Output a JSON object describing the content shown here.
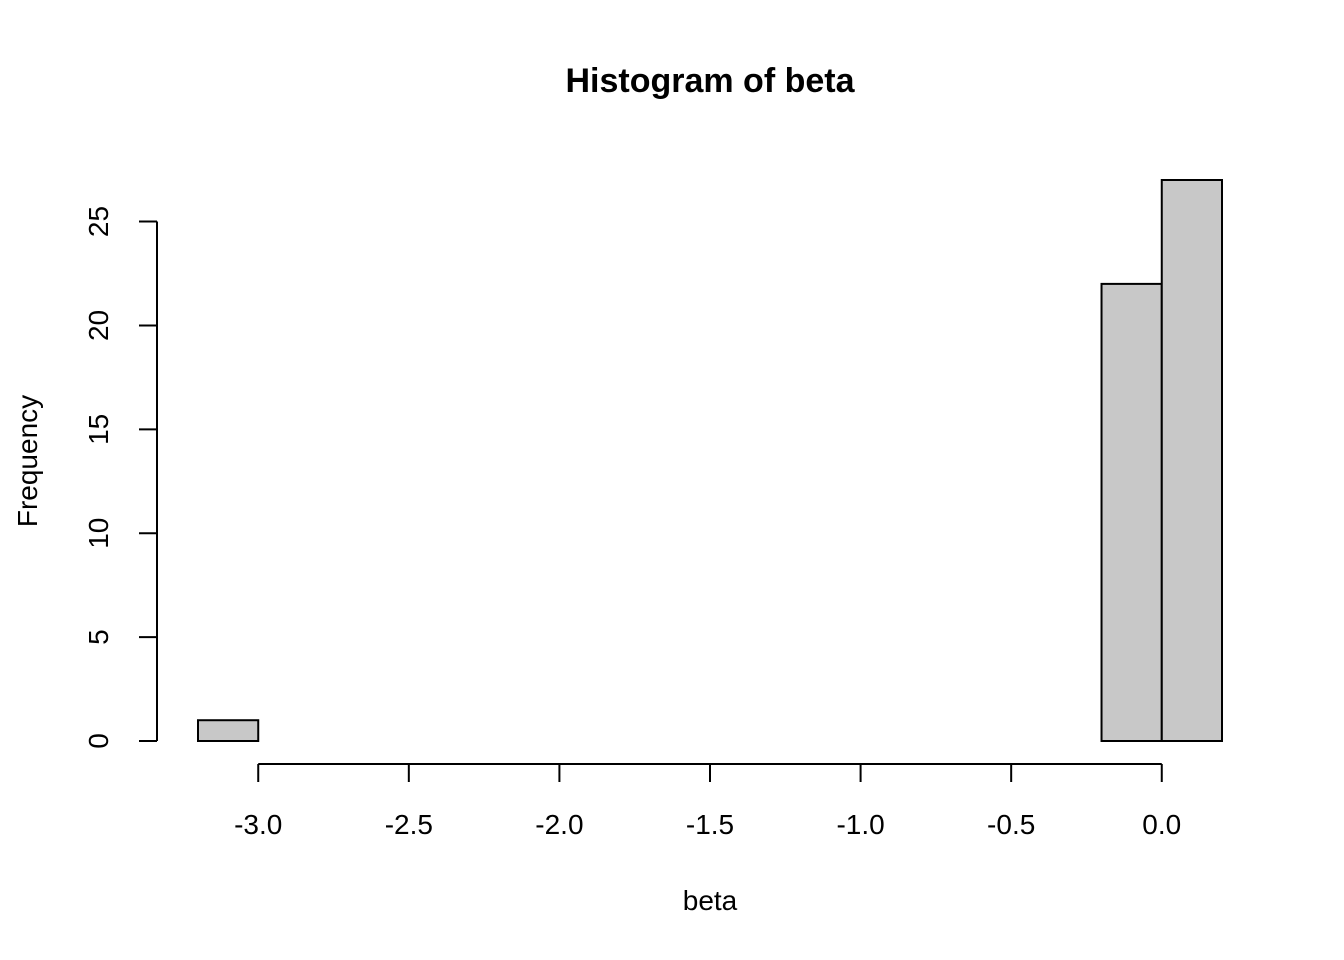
{
  "chart_data": {
    "type": "bar",
    "title": "Histogram of beta",
    "xlabel": "beta",
    "ylabel": "Frequency",
    "bins": [
      {
        "start": -3.2,
        "end": -3.0,
        "count": 1
      },
      {
        "start": -3.0,
        "end": -2.8,
        "count": 0
      },
      {
        "start": -2.8,
        "end": -2.6,
        "count": 0
      },
      {
        "start": -2.6,
        "end": -2.4,
        "count": 0
      },
      {
        "start": -2.4,
        "end": -2.2,
        "count": 0
      },
      {
        "start": -2.2,
        "end": -2.0,
        "count": 0
      },
      {
        "start": -2.0,
        "end": -1.8,
        "count": 0
      },
      {
        "start": -1.8,
        "end": -1.6,
        "count": 0
      },
      {
        "start": -1.6,
        "end": -1.4,
        "count": 0
      },
      {
        "start": -1.4,
        "end": -1.2,
        "count": 0
      },
      {
        "start": -1.2,
        "end": -1.0,
        "count": 0
      },
      {
        "start": -1.0,
        "end": -0.8,
        "count": 0
      },
      {
        "start": -0.8,
        "end": -0.6,
        "count": 0
      },
      {
        "start": -0.6,
        "end": -0.4,
        "count": 0
      },
      {
        "start": -0.4,
        "end": -0.2,
        "count": 0
      },
      {
        "start": -0.2,
        "end": 0.0,
        "count": 22
      },
      {
        "start": 0.0,
        "end": 0.2,
        "count": 27
      }
    ],
    "xticks": [
      -3.0,
      -2.5,
      -2.0,
      -1.5,
      -1.0,
      -0.5,
      0.0
    ],
    "xtick_labels": [
      "-3.0",
      "-2.5",
      "-2.0",
      "-1.5",
      "-1.0",
      "-0.5",
      "0.0"
    ],
    "yticks": [
      0,
      5,
      10,
      15,
      20,
      25
    ],
    "ytick_labels": [
      "0",
      "5",
      "10",
      "15",
      "20",
      "25"
    ],
    "xlim": [
      -3.2,
      0.2
    ],
    "ylim": [
      0,
      27
    ],
    "grid": false,
    "legend": "none",
    "bar_fill": "#c8c8c8",
    "bar_stroke": "#000000"
  }
}
